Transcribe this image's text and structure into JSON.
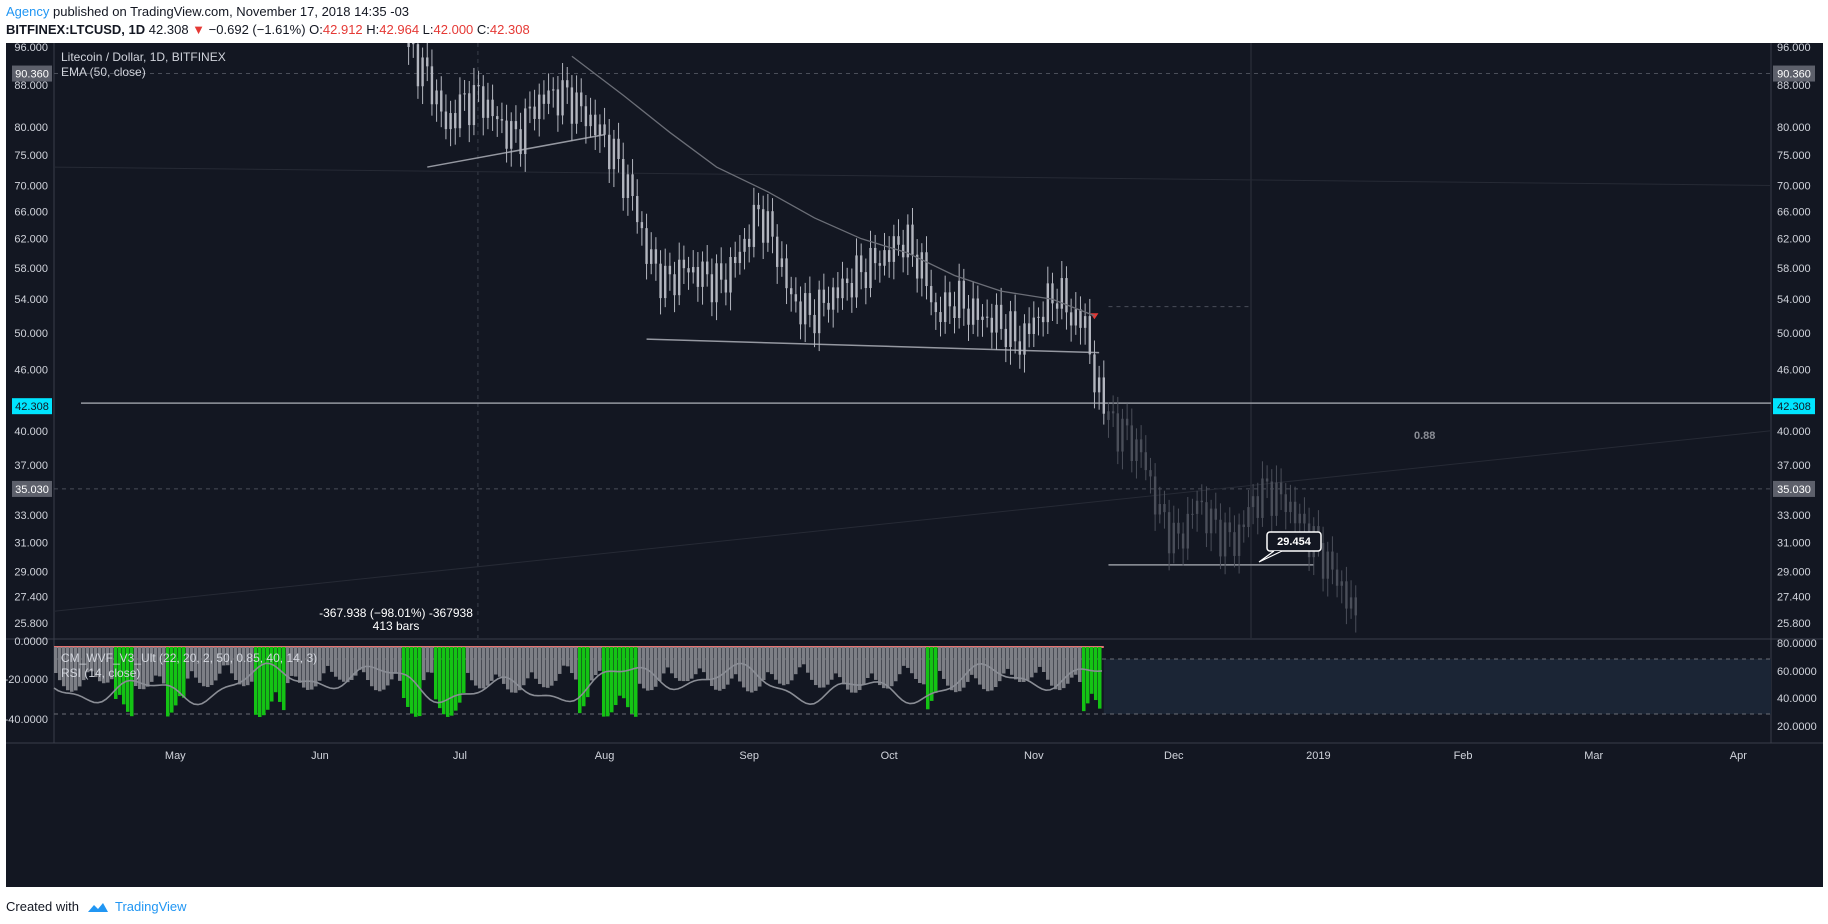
{
  "header": {
    "publisher": "Agency",
    "published_text": " published on TradingView.com, November 17, 2018 14:35 -03"
  },
  "symbol_bar": {
    "symbol": "BITFINEX:LTCUSD, 1D",
    "last": "42.308",
    "change": "−0.692 (−1.61%)",
    "o_label": "O:",
    "o": "42.912",
    "h_label": "H:",
    "h": "42.964",
    "l_label": "L:",
    "l": "42.000",
    "c_label": "C:",
    "c": "42.308"
  },
  "legend": {
    "title": "Litecoin / Dollar, 1D, BITFINEX",
    "ema": "EMA (50, close)",
    "wvf": "CM_WVF_V3_Ult (22, 20, 2, 50, 0.85, 40, 14, 3)",
    "rsi": "RSI (14, close)"
  },
  "footer": {
    "created_with": "Created with",
    "brand": "TradingView"
  },
  "colors": {
    "background": "#131722",
    "candle": "#b2b5be",
    "projection": "#4a4e59",
    "wvf_gray": "#7d7f86",
    "wvf_green": "#14c314",
    "rsi_line": "#8a8d95",
    "last_price": "#00e5ff"
  },
  "chart_data": {
    "type": "candlestick",
    "title": "Litecoin / Dollar, 1D, BITFINEX",
    "x_ticks": [
      "May",
      "Jun",
      "Jul",
      "Aug",
      "Sep",
      "Oct",
      "Nov",
      "Dec",
      "2019",
      "Feb",
      "Mar",
      "Apr"
    ],
    "y_ticks": [
      "96.000",
      "88.000",
      "80.000",
      "75.000",
      "70.000",
      "66.000",
      "62.000",
      "58.000",
      "54.000",
      "50.000",
      "46.000",
      "40.000",
      "37.000",
      "33.000",
      "31.000",
      "29.000",
      "27.400",
      "25.800"
    ],
    "y_scale": "log",
    "price_labels": [
      "90.360",
      "42.308",
      "35.030"
    ],
    "annotations": {
      "measure": "-367.938 (−98.01%) -367938",
      "bars": "413 bars",
      "fib": "0.88",
      "target": "29.454"
    },
    "series": [
      {
        "name": "Price (daily closes, estimated)",
        "points": [
          [
            "2018-06-20",
            96
          ],
          [
            "2018-06-25",
            88
          ],
          [
            "2018-06-28",
            80
          ],
          [
            "2018-07-01",
            84
          ],
          [
            "2018-07-05",
            86
          ],
          [
            "2018-07-10",
            80
          ],
          [
            "2018-07-13",
            78
          ],
          [
            "2018-07-17",
            84
          ],
          [
            "2018-07-20",
            86
          ],
          [
            "2018-07-24",
            86
          ],
          [
            "2018-07-27",
            83
          ],
          [
            "2018-07-31",
            79
          ],
          [
            "2018-08-03",
            75
          ],
          [
            "2018-08-07",
            68
          ],
          [
            "2018-08-10",
            60
          ],
          [
            "2018-08-14",
            56
          ],
          [
            "2018-08-18",
            58
          ],
          [
            "2018-08-22",
            57
          ],
          [
            "2018-08-26",
            56
          ],
          [
            "2018-08-30",
            60
          ],
          [
            "2018-09-03",
            66
          ],
          [
            "2018-09-06",
            62
          ],
          [
            "2018-09-10",
            54
          ],
          [
            "2018-09-14",
            52
          ],
          [
            "2018-09-18",
            54
          ],
          [
            "2018-09-22",
            56
          ],
          [
            "2018-09-26",
            58
          ],
          [
            "2018-10-01",
            60
          ],
          [
            "2018-10-04",
            62
          ],
          [
            "2018-10-08",
            58
          ],
          [
            "2018-10-11",
            52
          ],
          [
            "2018-10-15",
            54
          ],
          [
            "2018-10-20",
            52
          ],
          [
            "2018-10-25",
            51
          ],
          [
            "2018-10-29",
            49
          ],
          [
            "2018-11-02",
            52
          ],
          [
            "2018-11-06",
            55
          ],
          [
            "2018-11-09",
            52
          ],
          [
            "2018-11-12",
            51
          ],
          [
            "2018-11-14",
            45
          ],
          [
            "2018-11-15",
            43
          ],
          [
            "2018-11-16",
            42.308
          ]
        ]
      },
      {
        "name": "Projection (estimated)",
        "points": [
          [
            "2018-11-17",
            41
          ],
          [
            "2018-11-20",
            40
          ],
          [
            "2018-11-24",
            38
          ],
          [
            "2018-11-28",
            33
          ],
          [
            "2018-12-02",
            31
          ],
          [
            "2018-12-06",
            34
          ],
          [
            "2018-12-10",
            32
          ],
          [
            "2018-12-14",
            31
          ],
          [
            "2018-12-18",
            34
          ],
          [
            "2018-12-21",
            35
          ],
          [
            "2018-12-25",
            34
          ],
          [
            "2018-12-29",
            32
          ],
          [
            "2019-01-02",
            30
          ],
          [
            "2019-01-06",
            28
          ],
          [
            "2019-01-09",
            26
          ]
        ]
      },
      {
        "name": "EMA 50 (estimated)",
        "points": [
          [
            "2018-07-25",
            94
          ],
          [
            "2018-08-05",
            86
          ],
          [
            "2018-08-15",
            79
          ],
          [
            "2018-08-25",
            73
          ],
          [
            "2018-09-05",
            69
          ],
          [
            "2018-09-15",
            65
          ],
          [
            "2018-09-25",
            62
          ],
          [
            "2018-10-05",
            60
          ],
          [
            "2018-10-15",
            57
          ],
          [
            "2018-10-25",
            55
          ],
          [
            "2018-11-05",
            54
          ],
          [
            "2018-11-14",
            52
          ]
        ]
      }
    ],
    "oscillator": {
      "y_ticks_left": [
        "0.0000",
        "-20.0000",
        "-40.0000"
      ],
      "y_ticks_right": [
        "80.0000",
        "60.0000",
        "40.0000",
        "20.0000"
      ],
      "rsi_levels": [
        70,
        30
      ]
    }
  }
}
